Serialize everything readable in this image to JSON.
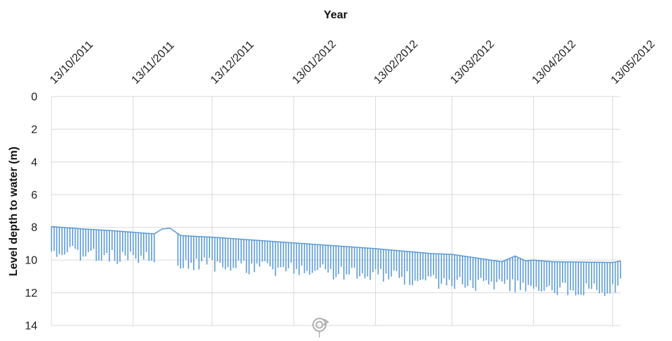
{
  "chart_data": {
    "type": "line",
    "title": "",
    "xlabel": "Year",
    "ylabel": "Level depth to water (m)",
    "x_axis_position": "top",
    "y_inverted": true,
    "ylim": [
      0,
      14
    ],
    "y_ticks": [
      "0",
      "2",
      "4",
      "6",
      "8",
      "10",
      "12",
      "14"
    ],
    "x_ticks": [
      "13/10/2011",
      "13/11/2011",
      "13/12/2011",
      "13/01/2012",
      "13/02/2012",
      "13/03/2012",
      "13/04/2012",
      "13/05/2012"
    ],
    "xlim": [
      "2011-10-13",
      "2012-05-16"
    ],
    "grid": true,
    "legend": "none",
    "series_color": "#5b9bd5",
    "series": [
      {
        "description": "daily fluctuation: upper envelope = static level, lower envelope = pumping drawdown",
        "upper": {
          "x": [
            "2011-10-13",
            "2011-10-25",
            "2011-11-05",
            "2011-11-13",
            "2011-11-21",
            "2011-11-24",
            "2011-11-27",
            "2011-12-01",
            "2011-12-13",
            "2012-01-13",
            "2012-02-13",
            "2012-03-05",
            "2012-03-13",
            "2012-04-01",
            "2012-04-06",
            "2012-04-10",
            "2012-04-13",
            "2012-04-20",
            "2012-05-13",
            "2012-05-16"
          ],
          "y": [
            7.95,
            8.1,
            8.2,
            8.3,
            8.4,
            8.1,
            8.05,
            8.5,
            8.6,
            8.95,
            9.3,
            9.6,
            9.65,
            10.1,
            9.75,
            10.05,
            10.0,
            10.1,
            10.15,
            10.05
          ]
        },
        "lower": {
          "x": [
            "2011-10-13",
            "2011-10-25",
            "2011-11-05",
            "2011-11-13",
            "2011-11-21",
            "2011-11-26",
            "2011-12-01",
            "2011-12-13",
            "2012-01-13",
            "2012-02-13",
            "2012-03-13",
            "2012-04-13",
            "2012-05-13",
            "2012-05-16"
          ],
          "y": [
            9.4,
            9.6,
            9.8,
            9.9,
            10.0,
            10.0,
            10.2,
            10.3,
            10.6,
            10.9,
            11.4,
            11.7,
            11.9,
            11.3
          ]
        }
      }
    ]
  },
  "watermark": "refresh-icon"
}
